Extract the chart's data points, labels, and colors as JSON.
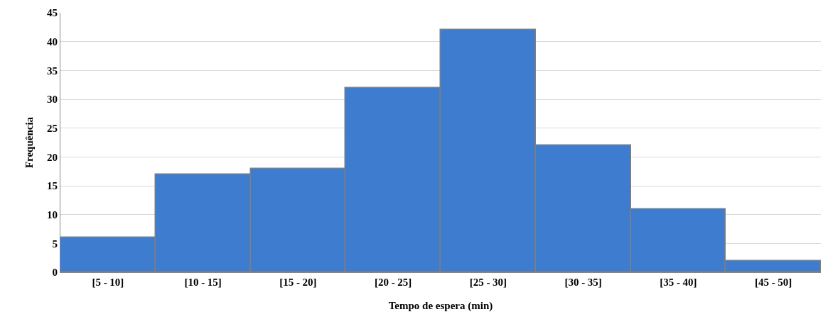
{
  "chart_data": {
    "type": "bar",
    "xlabel": "Tempo de espera (min)",
    "ylabel": "Frequência",
    "categories": [
      "[5 - 10]",
      "[10 - 15]",
      "[15 - 20]",
      "[20 - 25]",
      "[25 - 30]",
      "[30 - 35]",
      "[35 - 40]",
      "[45 - 50]"
    ],
    "values": [
      6,
      17,
      18,
      32,
      42,
      22,
      11,
      2
    ],
    "color": "#3d7ccf",
    "ylim": [
      0,
      45
    ],
    "yticks": [
      0,
      5,
      10,
      15,
      20,
      25,
      30,
      35,
      40,
      45
    ],
    "grid": "y",
    "legend": false
  }
}
